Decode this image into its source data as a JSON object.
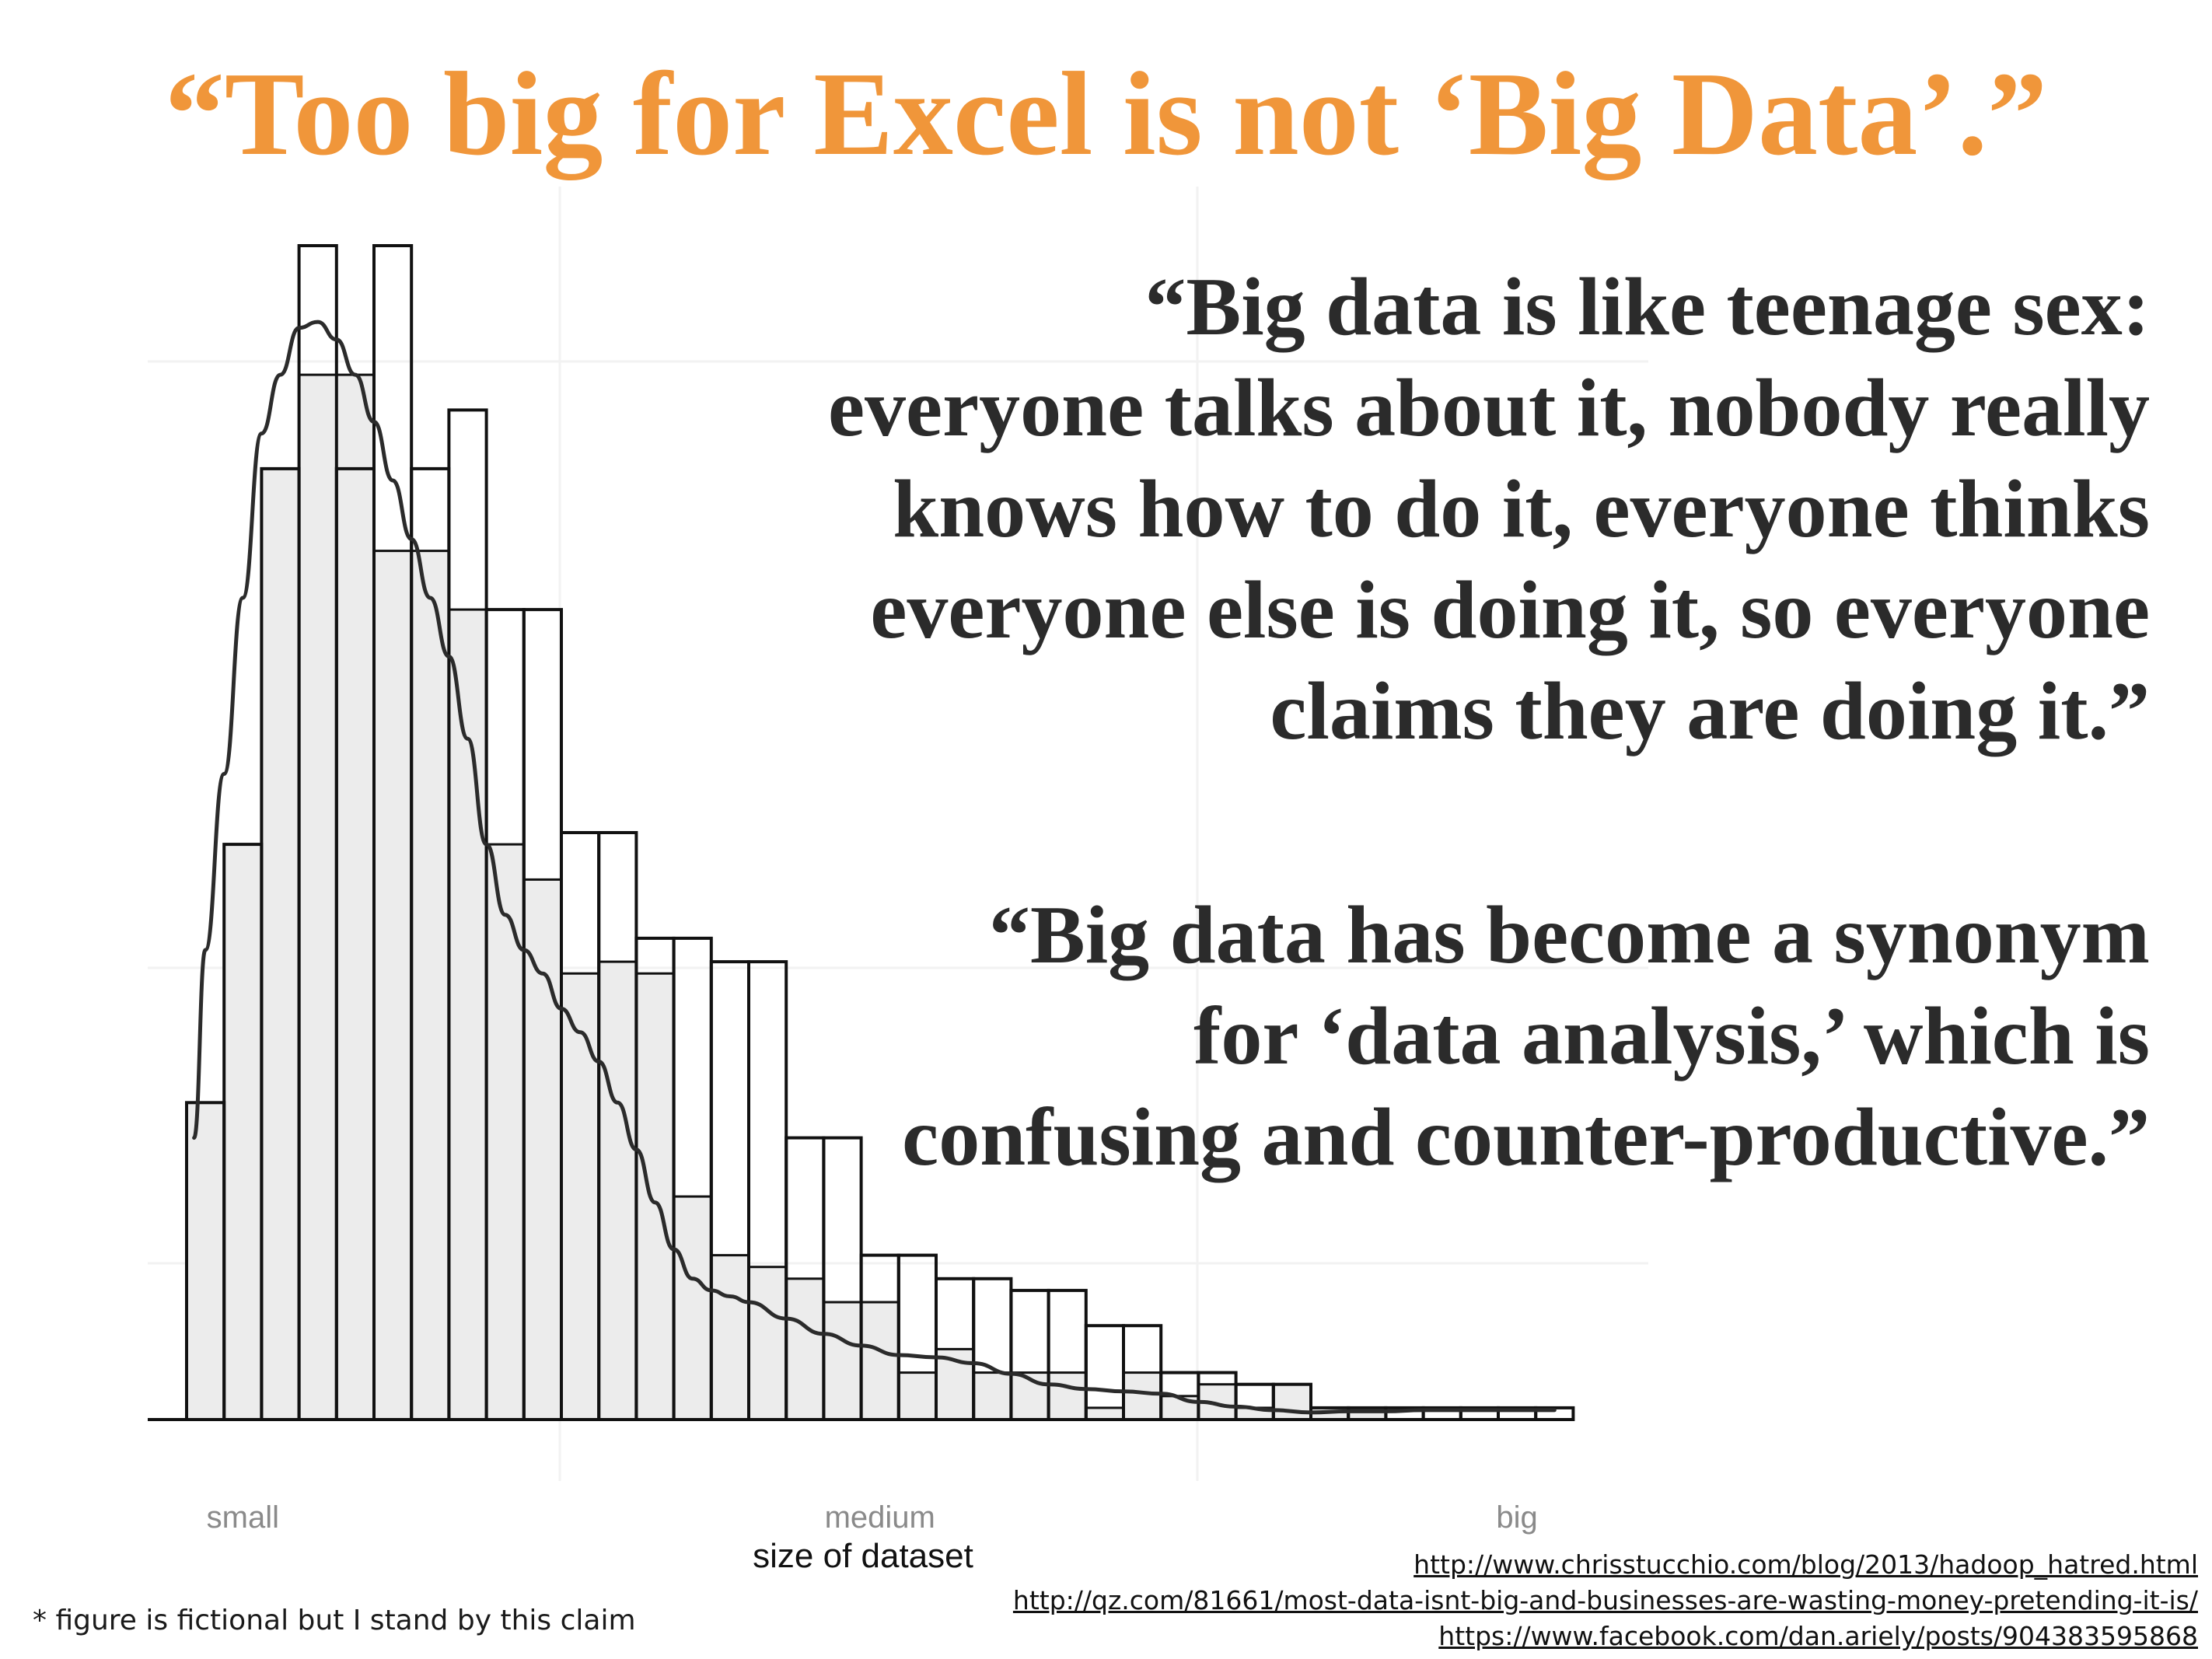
{
  "title": "“Too big for Excel is not ‘Big Data’.”",
  "quotes": [
    {
      "lines": [
        "“Big data is like teenage sex:",
        "everyone talks about it, nobody really",
        "knows how to do it, everyone thinks",
        "everyone else is doing it, so everyone",
        "claims they are doing it.”"
      ]
    },
    {
      "lines": [
        "“Big data has become a synonym",
        "for ‘data analysis,’ which is",
        "confusing and counter-productive.”"
      ]
    }
  ],
  "chart_data": {
    "type": "bar",
    "subtype": "histogram with density curve overlay",
    "title": "",
    "xlabel": "size of dataset",
    "ylabel": "",
    "x_tick_labels": [
      {
        "label": "small",
        "x": 2.0
      },
      {
        "label": "medium",
        "x": 19.0
      },
      {
        "label": "big",
        "x": 36.0
      }
    ],
    "xlim": [
      0,
      38
    ],
    "ylim": [
      0,
      100
    ],
    "bin_edges": [
      0,
      1,
      2,
      3,
      4,
      5,
      6,
      7,
      8,
      9,
      10,
      11,
      12,
      13,
      14,
      15,
      16,
      17,
      18,
      19,
      20,
      21,
      22,
      23,
      24,
      25,
      26,
      27,
      28,
      29,
      30,
      31,
      32,
      33,
      34,
      35,
      36,
      37
    ],
    "series": [
      {
        "role": "outline",
        "values": [
          27,
          49,
          81,
          100,
          81,
          100,
          81,
          86,
          69,
          69,
          50,
          50,
          41,
          41,
          39,
          39,
          24,
          24,
          14,
          14,
          12,
          12,
          11,
          11,
          8,
          8,
          4,
          4,
          3,
          3,
          1,
          1,
          1,
          1,
          1,
          1,
          1
        ]
      },
      {
        "role": "fill",
        "values": [
          27,
          49,
          81,
          89,
          89,
          74,
          74,
          69,
          49,
          46,
          38,
          39,
          38,
          19,
          14,
          13,
          12,
          10,
          10,
          4,
          6,
          4,
          4,
          4,
          1,
          4,
          2,
          3,
          1,
          3,
          1,
          1,
          0,
          0,
          0,
          0,
          0
        ]
      }
    ],
    "density_curve": {
      "x": [
        0.2,
        0.5,
        1,
        1.5,
        2,
        2.5,
        3,
        3.5,
        4,
        4.5,
        5,
        5.5,
        6,
        6.5,
        7,
        7.5,
        8,
        8.5,
        9,
        9.5,
        10,
        10.5,
        11,
        11.5,
        12,
        12.5,
        13,
        13.5,
        14,
        14.5,
        15,
        16,
        17,
        18,
        19,
        20,
        21,
        22,
        23,
        24,
        25,
        26,
        27,
        28,
        29,
        30,
        31,
        32,
        33,
        34,
        35,
        36,
        36.5
      ],
      "y": [
        24,
        40,
        55,
        70,
        84,
        89,
        93,
        93.5,
        92,
        89,
        85,
        80,
        75,
        70,
        65,
        58,
        49,
        43,
        40,
        38,
        35,
        33,
        30.5,
        27,
        23,
        18.5,
        14.5,
        12,
        11,
        10.5,
        10,
        8.6,
        7.3,
        6.3,
        5.5,
        5.3,
        4.8,
        3.9,
        3,
        2.6,
        2.4,
        2.2,
        1.5,
        1.1,
        0.8,
        0.6,
        0.7,
        0.7,
        0.8,
        0.8,
        0.8,
        0.8,
        0.8
      ]
    },
    "grid": true,
    "legend": "none"
  },
  "footnote": "* figure is fictional but I stand by this claim",
  "sources": [
    "http://www.chrisstucchio.com/blog/2013/hadoop_hatred.html",
    "http://qz.com/81661/most-data-isnt-big-and-businesses-are-wasting-money-pretending-it-is/",
    "https://www.facebook.com/dan.ariely/posts/904383595868"
  ],
  "colors": {
    "title": "#f0963a",
    "quote_text": "#2b2b2b",
    "bar_fill": "#ececec",
    "bar_outline": "#111111",
    "curve": "#2b2b2b",
    "axis": "#111111",
    "tick_label": "#8a8a8a",
    "grid": "#f2f2f2"
  }
}
